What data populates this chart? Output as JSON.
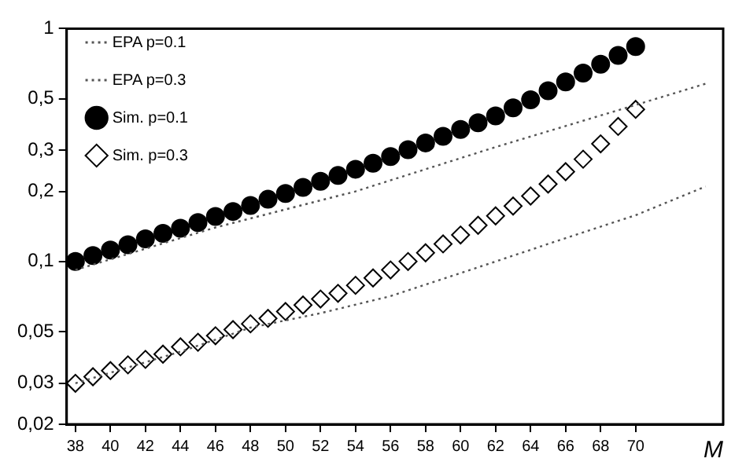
{
  "chart_data": {
    "type": "scatter",
    "xlabel": "M",
    "legend": "top left",
    "log": "y",
    "grid": false,
    "xlim": [
      37.5,
      75
    ],
    "xticks": [
      38,
      40,
      42,
      44,
      46,
      48,
      50,
      52,
      54,
      56,
      58,
      60,
      62,
      64,
      66,
      68,
      70
    ],
    "ylim": [
      0.02,
      1
    ],
    "yticks": [
      {
        "value": 0.02,
        "label": "0,02"
      },
      {
        "value": 0.03,
        "label": "0,03"
      },
      {
        "value": 0.05,
        "label": "0,05"
      },
      {
        "value": 0.1,
        "label": "0,1"
      },
      {
        "value": 0.2,
        "label": "0,2"
      },
      {
        "value": 0.3,
        "label": "0,3"
      },
      {
        "value": 0.5,
        "label": "0,5"
      },
      {
        "value": 1,
        "label": "1"
      }
    ],
    "series": [
      {
        "name": "EPA p=0.1",
        "type": "line",
        "line_style": "dotted",
        "marker": "none",
        "color": "#555555",
        "x": [
          38,
          46,
          54,
          62,
          70,
          74
        ],
        "values": [
          0.092,
          0.14,
          0.2,
          0.31,
          0.47,
          0.58
        ]
      },
      {
        "name": "EPA p=0.3",
        "type": "line",
        "line_style": "dotted",
        "marker": "none",
        "color": "#555555",
        "x": [
          38,
          44,
          48,
          52,
          56,
          62,
          66,
          70,
          74
        ],
        "values": [
          0.03,
          0.041,
          0.052,
          0.06,
          0.071,
          0.1,
          0.126,
          0.158,
          0.21
        ]
      },
      {
        "name": "Sim. p=0.1",
        "marker": "circle",
        "color": "#000000",
        "x": [
          38,
          39,
          40,
          41,
          42,
          43,
          44,
          45,
          46,
          47,
          48,
          49,
          50,
          51,
          52,
          53,
          54,
          55,
          56,
          57,
          58,
          59,
          60,
          61,
          62,
          63,
          64,
          65,
          66,
          67,
          68,
          69,
          70
        ],
        "values": [
          0.1,
          0.106,
          0.112,
          0.118,
          0.125,
          0.132,
          0.139,
          0.147,
          0.156,
          0.164,
          0.174,
          0.185,
          0.196,
          0.208,
          0.221,
          0.234,
          0.249,
          0.264,
          0.282,
          0.302,
          0.323,
          0.345,
          0.369,
          0.394,
          0.422,
          0.457,
          0.495,
          0.541,
          0.59,
          0.644,
          0.703,
          0.767,
          0.838
        ]
      },
      {
        "name": "Sim. p=0.3",
        "marker": "diamond",
        "color": "#000000",
        "x": [
          38,
          39,
          40,
          41,
          42,
          43,
          44,
          45,
          46,
          47,
          48,
          49,
          50,
          51,
          52,
          53,
          54,
          55,
          56,
          57,
          58,
          59,
          60,
          61,
          62,
          63,
          64,
          65,
          66,
          67,
          68,
          69,
          70
        ],
        "values": [
          0.03,
          0.032,
          0.034,
          0.036,
          0.038,
          0.04,
          0.043,
          0.045,
          0.048,
          0.051,
          0.054,
          0.057,
          0.061,
          0.065,
          0.069,
          0.073,
          0.079,
          0.085,
          0.092,
          0.1,
          0.109,
          0.119,
          0.13,
          0.143,
          0.157,
          0.173,
          0.191,
          0.215,
          0.243,
          0.275,
          0.32,
          0.38,
          0.45
        ]
      }
    ]
  }
}
